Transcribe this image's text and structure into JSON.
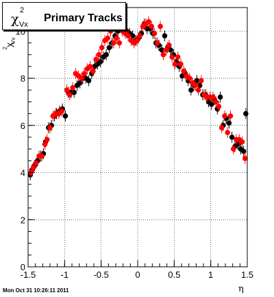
{
  "title": {
    "symbol": "χ",
    "superscript": "2",
    "subscript": "Vx",
    "text": "Primary Tracks"
  },
  "footer": "Mon Oct 31 10:26:11 2011",
  "chart_data": {
    "type": "scatter",
    "title": "Primary Tracks",
    "xlabel": "η",
    "ylabel": "χ²_Vx",
    "xlim": [
      -1.5,
      1.5
    ],
    "ylim": [
      0,
      11
    ],
    "grid": true,
    "xticks": [
      -1.5,
      -1,
      -0.5,
      0,
      0.5,
      1,
      1.5
    ],
    "xtick_labels": [
      "-1.5",
      "-1",
      "-0.5",
      "0",
      "0.5",
      "1",
      "1.5"
    ],
    "yticks": [
      0,
      2,
      4,
      6,
      8,
      10
    ],
    "ytick_labels": [
      "0",
      "2",
      "4",
      "6",
      "8",
      "10"
    ],
    "series": [
      {
        "color": "#000000",
        "points": [
          [
            -1.47,
            3.9
          ],
          [
            -1.45,
            4.1
          ],
          [
            -1.41,
            4.3
          ],
          [
            -1.37,
            4.5
          ],
          [
            -1.33,
            4.7
          ],
          [
            -1.29,
            4.8
          ],
          [
            -1.26,
            5.3
          ],
          [
            -1.22,
            5.9
          ],
          [
            -1.18,
            6.0
          ],
          [
            -1.14,
            6.4
          ],
          [
            -1.11,
            6.5
          ],
          [
            -1.07,
            6.6
          ],
          [
            -1.03,
            6.7
          ],
          [
            -0.99,
            6.4
          ],
          [
            -0.95,
            7.4
          ],
          [
            -0.91,
            7.4
          ],
          [
            -0.87,
            7.4
          ],
          [
            -0.83,
            7.7
          ],
          [
            -0.79,
            7.8
          ],
          [
            -0.75,
            8.0
          ],
          [
            -0.71,
            8.0
          ],
          [
            -0.67,
            7.9
          ],
          [
            -0.63,
            8.2
          ],
          [
            -0.59,
            8.5
          ],
          [
            -0.55,
            8.6
          ],
          [
            -0.51,
            8.7
          ],
          [
            -0.47,
            8.9
          ],
          [
            -0.43,
            9.0
          ],
          [
            -0.39,
            9.3
          ],
          [
            -0.35,
            9.5
          ],
          [
            -0.31,
            9.8
          ],
          [
            -0.27,
            10.0
          ],
          [
            -0.23,
            10.3
          ],
          [
            -0.19,
            10.1
          ],
          [
            -0.15,
            10.0
          ],
          [
            -0.11,
            9.9
          ],
          [
            -0.07,
            9.8
          ],
          [
            -0.03,
            9.6
          ],
          [
            0.01,
            9.7
          ],
          [
            0.05,
            9.9
          ],
          [
            0.09,
            10.3
          ],
          [
            0.13,
            10.1
          ],
          [
            0.17,
            10.1
          ],
          [
            0.21,
            9.9
          ],
          [
            0.25,
            9.5
          ],
          [
            0.29,
            9.4
          ],
          [
            0.33,
            9.2
          ],
          [
            0.37,
            9.8
          ],
          [
            0.41,
            9.3
          ],
          [
            0.45,
            9.2
          ],
          [
            0.49,
            9.0
          ],
          [
            0.53,
            8.7
          ],
          [
            0.57,
            8.5
          ],
          [
            0.61,
            8.1
          ],
          [
            0.65,
            8.2
          ],
          [
            0.69,
            7.9
          ],
          [
            0.73,
            7.5
          ],
          [
            0.77,
            7.7
          ],
          [
            0.81,
            7.9
          ],
          [
            0.85,
            7.7
          ],
          [
            0.89,
            7.3
          ],
          [
            0.93,
            7.3
          ],
          [
            0.97,
            7.0
          ],
          [
            1.01,
            6.9
          ],
          [
            1.05,
            7.1
          ],
          [
            1.09,
            6.7
          ],
          [
            1.13,
            7.2
          ],
          [
            1.17,
            6.0
          ],
          [
            1.21,
            6.3
          ],
          [
            1.25,
            6.1
          ],
          [
            1.29,
            5.5
          ],
          [
            1.33,
            5.1
          ],
          [
            1.37,
            5.2
          ],
          [
            1.41,
            5.0
          ],
          [
            1.45,
            4.9
          ],
          [
            1.48,
            6.5
          ]
        ]
      },
      {
        "color": "#ff0000",
        "points": [
          [
            -1.46,
            4.0
          ],
          [
            -1.43,
            4.2
          ],
          [
            -1.39,
            4.4
          ],
          [
            -1.35,
            4.7
          ],
          [
            -1.31,
            4.7
          ],
          [
            -1.27,
            5.2
          ],
          [
            -1.24,
            5.4
          ],
          [
            -1.2,
            5.9
          ],
          [
            -1.16,
            6.4
          ],
          [
            -1.12,
            6.5
          ],
          [
            -1.08,
            6.5
          ],
          [
            -1.04,
            6.6
          ],
          [
            -0.97,
            7.5
          ],
          [
            -0.93,
            7.3
          ],
          [
            -0.89,
            7.6
          ],
          [
            -0.85,
            8.2
          ],
          [
            -0.81,
            8.1
          ],
          [
            -0.77,
            8.0
          ],
          [
            -0.73,
            8.2
          ],
          [
            -0.69,
            8.4
          ],
          [
            -0.65,
            8.5
          ],
          [
            -0.61,
            8.3
          ],
          [
            -0.57,
            8.8
          ],
          [
            -0.53,
            9.0
          ],
          [
            -0.49,
            9.3
          ],
          [
            -0.45,
            9.6
          ],
          [
            -0.41,
            9.7
          ],
          [
            -0.37,
            10.0
          ],
          [
            -0.33,
            9.5
          ],
          [
            -0.29,
            9.7
          ],
          [
            -0.25,
            9.5
          ],
          [
            -0.21,
            10.0
          ],
          [
            -0.17,
            9.9
          ],
          [
            -0.13,
            9.8
          ],
          [
            -0.09,
            9.6
          ],
          [
            -0.05,
            9.5
          ],
          [
            -0.01,
            9.6
          ],
          [
            0.03,
            9.8
          ],
          [
            0.07,
            10.2
          ],
          [
            0.11,
            10.3
          ],
          [
            0.15,
            10.4
          ],
          [
            0.19,
            10.2
          ],
          [
            0.23,
            9.9
          ],
          [
            0.27,
            9.5
          ],
          [
            0.31,
            10.2
          ],
          [
            0.35,
            9.0
          ],
          [
            0.39,
            9.2
          ],
          [
            0.43,
            9.4
          ],
          [
            0.47,
            8.9
          ],
          [
            0.51,
            8.6
          ],
          [
            0.55,
            8.9
          ],
          [
            0.59,
            8.6
          ],
          [
            0.63,
            8.3
          ],
          [
            0.67,
            8.1
          ],
          [
            0.71,
            8.0
          ],
          [
            0.75,
            7.8
          ],
          [
            0.79,
            7.7
          ],
          [
            0.83,
            7.5
          ],
          [
            0.87,
            7.9
          ],
          [
            0.91,
            7.3
          ],
          [
            0.95,
            7.2
          ],
          [
            0.99,
            7.2
          ],
          [
            1.03,
            7.2
          ],
          [
            1.07,
            7.0
          ],
          [
            1.11,
            6.8
          ],
          [
            1.15,
            5.9
          ],
          [
            1.19,
            6.4
          ],
          [
            1.23,
            5.7
          ],
          [
            1.27,
            6.4
          ],
          [
            1.31,
            5.0
          ],
          [
            1.35,
            5.4
          ],
          [
            1.39,
            5.4
          ],
          [
            1.43,
            5.3
          ],
          [
            1.47,
            4.6
          ]
        ]
      }
    ]
  }
}
